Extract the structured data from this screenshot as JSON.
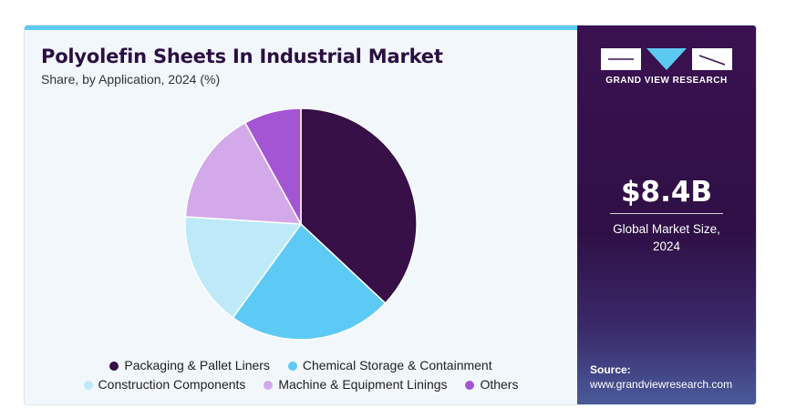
{
  "title": "Polyolefin Sheets In Industrial Market",
  "subtitle": "Share, by Application, 2024 (%)",
  "chart_data": {
    "type": "pie",
    "title": "Polyolefin Sheets In Industrial Market",
    "subtitle": "Share, by Application, 2024 (%)",
    "legend_position": "bottom",
    "slices": [
      {
        "name": "Packaging & Pallet Liners",
        "value": 37,
        "color": "#361046"
      },
      {
        "name": "Chemical Storage & Containment",
        "value": 23,
        "color": "#5ccaf4"
      },
      {
        "name": "Construction Components",
        "value": 16,
        "color": "#bde9f9"
      },
      {
        "name": "Machine & Equipment Linings",
        "value": 16,
        "color": "#d3a9ea"
      },
      {
        "name": "Others",
        "value": 8,
        "color": "#a455d4"
      }
    ]
  },
  "sidebar": {
    "brand": "GRAND VIEW RESEARCH",
    "market_size_value": "$8.4B",
    "market_size_label_line1": "Global Market Size,",
    "market_size_label_line2": "2024",
    "source_label": "Source:",
    "source_url": "www.grandviewresearch.com"
  }
}
